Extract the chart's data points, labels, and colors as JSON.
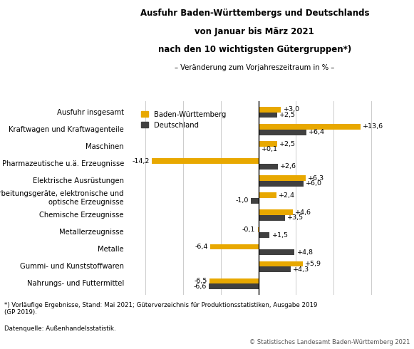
{
  "title_line1": "Ausfuhr Baden-Württembergs und Deutschlands",
  "title_line2": "von Januar bis März 2021",
  "title_line3": "nach den 10 wichtigsten Gütergruppen*)",
  "subtitle": "– Veränderung zum Vorjahreszeitraum in % –",
  "categories": [
    "Nahrungs- und Futtermittel",
    "Gummi- und Kunststoffwaren",
    "Metalle",
    "Metallerzeugnisse",
    "Chemische Erzeugnisse",
    "Datenverarbeitungsgeräte, elektronische und\noptische Erzeugnisse",
    "Elektrische Ausrüstungen",
    "Pharmazeutische u.ä. Erzeugnisse",
    "Maschinen",
    "Kraftwagen und Kraftwagenteile",
    "Ausfuhr insgesamt"
  ],
  "bw_values": [
    -6.5,
    5.9,
    -6.4,
    -0.1,
    4.6,
    2.4,
    6.3,
    -14.2,
    2.5,
    13.6,
    3.0
  ],
  "de_values": [
    -6.6,
    4.3,
    4.8,
    1.5,
    3.5,
    -1.0,
    6.0,
    2.6,
    0.1,
    6.4,
    2.5
  ],
  "bw_color": "#E8A800",
  "de_color": "#404040",
  "bar_height": 0.32,
  "xlim": [
    -17,
    16
  ],
  "legend_bw": "Baden-Württemberg",
  "legend_de": "Deutschland",
  "footnote1": "*) Vorläufige Ergebnisse, Stand: Mai 2021; Güterverzeichnis für Produktionsstatistiken, Ausgabe 2019\n(GP 2019).",
  "footnote2": "Datenquelle: Außenhandelsstatistik.",
  "copyright": "© Statistisches Landesamt Baden-Württemberg 2021",
  "bg_color": "#ffffff",
  "grid_color": "#cccccc",
  "title_fontsize": 8.5,
  "label_fontsize": 7.2,
  "bar_label_fontsize": 6.8
}
